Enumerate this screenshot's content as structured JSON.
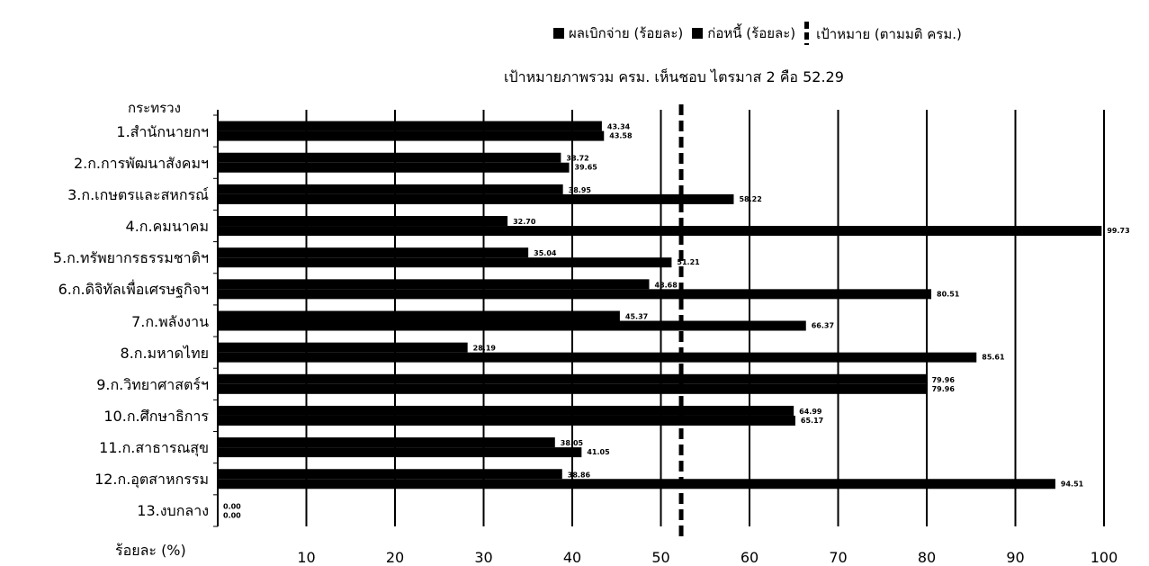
{
  "chart_data": {
    "type": "bar",
    "orientation": "horizontal",
    "legend_position": "top",
    "category_title": "กระทรวง",
    "xlabel": "ร้อยละ (%)",
    "xlim": [
      0,
      100
    ],
    "xticks": [
      10,
      20,
      30,
      40,
      50,
      60,
      70,
      80,
      90,
      100
    ],
    "target": {
      "label": "เป้าหมาย (ตามมติ ครม.)",
      "value": 52.29
    },
    "annotation": "เป้าหมายภาพรวม ครม. เห็นชอบ ไตรมาส 2 คือ 52.29",
    "categories": [
      "1.สำนักนายกฯ",
      "2.ก.การพัฒนาสังคมฯ",
      "3.ก.เกษตรและสหกรณ์",
      "4.ก.คมนาคม",
      "5.ก.ทรัพยากรธรรมชาติฯ",
      "6.ก.ดิจิทัลเพื่อเศรษฐกิจฯ",
      "7.ก.พลังงาน",
      "8.ก.มหาดไทย",
      "9.ก.วิทยาศาสตร์ฯ",
      "10.ก.ศึกษาธิการ",
      "11.ก.สาธารณสุข",
      "12.ก.อุตสาหกรรม",
      "13.งบกลาง"
    ],
    "series": [
      {
        "name": "ผลเบิกจ่าย (ร้อยละ)",
        "color": "#000000",
        "values": [
          43.34,
          38.72,
          38.95,
          32.7,
          35.04,
          48.68,
          45.37,
          28.19,
          79.96,
          64.99,
          38.05,
          38.86,
          0.0
        ],
        "labels": [
          "43.34",
          "38.72",
          "38.95",
          "32.70",
          "35.04",
          "48.68",
          "45.37",
          "28.19",
          "79.96",
          "64.99",
          "38.05",
          "38.86",
          "0.00"
        ]
      },
      {
        "name": "ก่อหนี้ (ร้อยละ)",
        "color": "#000000",
        "values": [
          43.58,
          39.65,
          58.22,
          99.73,
          51.21,
          80.51,
          66.37,
          85.61,
          79.96,
          65.17,
          41.05,
          94.51,
          0.0
        ],
        "labels": [
          "43.58",
          "39.65",
          "58.22",
          "99.73",
          "51.21",
          "80.51",
          "66.37",
          "85.61",
          "79.96",
          "65.17",
          "41.05",
          "94.51",
          "0.00"
        ]
      }
    ]
  }
}
